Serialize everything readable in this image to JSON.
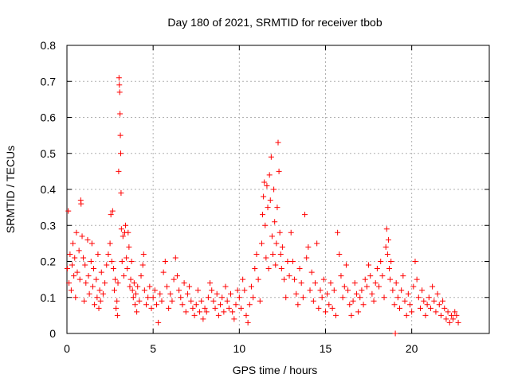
{
  "chart_data": {
    "type": "scatter",
    "title": "Day 180 of 2021, SRMTID for receiver tbob",
    "xlabel": "GPS time / hours",
    "ylabel": "SRMTID / TECUs",
    "xlim": [
      0,
      24.5
    ],
    "ylim": [
      0,
      0.8
    ],
    "xticks": [
      0,
      5,
      10,
      15,
      20
    ],
    "xtick_labels": [
      "0",
      "5",
      "10",
      "15",
      "20"
    ],
    "yticks": [
      0,
      0.1,
      0.2,
      0.3,
      0.4,
      0.5,
      0.6,
      0.7,
      0.8
    ],
    "ytick_labels": [
      "0",
      "0.1",
      "0.2",
      "0.3",
      "0.4",
      "0.5",
      "0.6",
      "0.7",
      "0.8"
    ],
    "grid": true,
    "marker": "+",
    "color": "#ff0000",
    "series": [
      {
        "name": "SRMTID",
        "points": [
          [
            0.02,
            0.18
          ],
          [
            0.08,
            0.34
          ],
          [
            0.12,
            0.14
          ],
          [
            0.18,
            0.22
          ],
          [
            0.25,
            0.12
          ],
          [
            0.3,
            0.19
          ],
          [
            0.35,
            0.25
          ],
          [
            0.4,
            0.16
          ],
          [
            0.45,
            0.21
          ],
          [
            0.5,
            0.1
          ],
          [
            0.55,
            0.28
          ],
          [
            0.6,
            0.17
          ],
          [
            0.7,
            0.23
          ],
          [
            0.75,
            0.15
          ],
          [
            0.8,
            0.37
          ],
          [
            0.82,
            0.36
          ],
          [
            0.88,
            0.27
          ],
          [
            0.95,
            0.21
          ],
          [
            1.0,
            0.09
          ],
          [
            1.05,
            0.19
          ],
          [
            1.1,
            0.14
          ],
          [
            1.2,
            0.26
          ],
          [
            1.25,
            0.16
          ],
          [
            1.3,
            0.11
          ],
          [
            1.4,
            0.2
          ],
          [
            1.45,
            0.25
          ],
          [
            1.5,
            0.13
          ],
          [
            1.55,
            0.18
          ],
          [
            1.6,
            0.08
          ],
          [
            1.7,
            0.15
          ],
          [
            1.75,
            0.1
          ],
          [
            1.8,
            0.22
          ],
          [
            1.85,
            0.07
          ],
          [
            1.9,
            0.12
          ],
          [
            1.95,
            0.09
          ],
          [
            2.0,
            0.17
          ],
          [
            2.1,
            0.11
          ],
          [
            2.2,
            0.14
          ],
          [
            2.3,
            0.19
          ],
          [
            2.4,
            0.22
          ],
          [
            2.5,
            0.25
          ],
          [
            2.55,
            0.33
          ],
          [
            2.6,
            0.2
          ],
          [
            2.65,
            0.34
          ],
          [
            2.7,
            0.18
          ],
          [
            2.75,
            0.12
          ],
          [
            2.8,
            0.15
          ],
          [
            2.85,
            0.07
          ],
          [
            2.9,
            0.09
          ],
          [
            2.93,
            0.05
          ],
          [
            2.96,
            0.14
          ],
          [
            3.0,
            0.45
          ],
          [
            3.02,
            0.71
          ],
          [
            3.04,
            0.69
          ],
          [
            3.06,
            0.67
          ],
          [
            3.08,
            0.61
          ],
          [
            3.1,
            0.55
          ],
          [
            3.12,
            0.5
          ],
          [
            3.14,
            0.39
          ],
          [
            3.16,
            0.29
          ],
          [
            3.2,
            0.2
          ],
          [
            3.25,
            0.27
          ],
          [
            3.3,
            0.16
          ],
          [
            3.35,
            0.28
          ],
          [
            3.4,
            0.3
          ],
          [
            3.45,
            0.21
          ],
          [
            3.5,
            0.18
          ],
          [
            3.55,
            0.28
          ],
          [
            3.6,
            0.24
          ],
          [
            3.65,
            0.13
          ],
          [
            3.7,
            0.15
          ],
          [
            3.75,
            0.2
          ],
          [
            3.8,
            0.12
          ],
          [
            3.85,
            0.1
          ],
          [
            3.9,
            0.14
          ],
          [
            3.95,
            0.08
          ],
          [
            4.0,
            0.11
          ],
          [
            4.05,
            0.06
          ],
          [
            4.1,
            0.13
          ],
          [
            4.2,
            0.09
          ],
          [
            4.3,
            0.16
          ],
          [
            4.4,
            0.19
          ],
          [
            4.45,
            0.22
          ],
          [
            4.5,
            0.12
          ],
          [
            4.6,
            0.08
          ],
          [
            4.7,
            0.1
          ],
          [
            4.8,
            0.13
          ],
          [
            4.9,
            0.07
          ],
          [
            5.0,
            0.1
          ],
          [
            5.1,
            0.12
          ],
          [
            5.2,
            0.08
          ],
          [
            5.3,
            0.03
          ],
          [
            5.4,
            0.11
          ],
          [
            5.5,
            0.09
          ],
          [
            5.6,
            0.17
          ],
          [
            5.7,
            0.2
          ],
          [
            5.8,
            0.13
          ],
          [
            5.9,
            0.07
          ],
          [
            6.0,
            0.11
          ],
          [
            6.1,
            0.09
          ],
          [
            6.2,
            0.15
          ],
          [
            6.3,
            0.21
          ],
          [
            6.4,
            0.16
          ],
          [
            6.5,
            0.12
          ],
          [
            6.6,
            0.1
          ],
          [
            6.7,
            0.08
          ],
          [
            6.8,
            0.14
          ],
          [
            6.9,
            0.06
          ],
          [
            7.0,
            0.11
          ],
          [
            7.1,
            0.13
          ],
          [
            7.2,
            0.09
          ],
          [
            7.3,
            0.07
          ],
          [
            7.4,
            0.05
          ],
          [
            7.5,
            0.08
          ],
          [
            7.6,
            0.12
          ],
          [
            7.7,
            0.06
          ],
          [
            7.8,
            0.09
          ],
          [
            7.9,
            0.04
          ],
          [
            8.0,
            0.07
          ],
          [
            8.1,
            0.06
          ],
          [
            8.2,
            0.1
          ],
          [
            8.3,
            0.14
          ],
          [
            8.4,
            0.12
          ],
          [
            8.5,
            0.09
          ],
          [
            8.6,
            0.07
          ],
          [
            8.7,
            0.11
          ],
          [
            8.8,
            0.05
          ],
          [
            8.9,
            0.08
          ],
          [
            9.0,
            0.1
          ],
          [
            9.1,
            0.06
          ],
          [
            9.2,
            0.13
          ],
          [
            9.3,
            0.09
          ],
          [
            9.4,
            0.07
          ],
          [
            9.5,
            0.11
          ],
          [
            9.6,
            0.06
          ],
          [
            9.7,
            0.04
          ],
          [
            9.8,
            0.08
          ],
          [
            9.9,
            0.12
          ],
          [
            10.0,
            0.1
          ],
          [
            10.1,
            0.07
          ],
          [
            10.2,
            0.15
          ],
          [
            10.3,
            0.12
          ],
          [
            10.4,
            0.05
          ],
          [
            10.5,
            0.03
          ],
          [
            10.6,
            0.08
          ],
          [
            10.7,
            0.13
          ],
          [
            10.8,
            0.1
          ],
          [
            10.9,
            0.18
          ],
          [
            11.0,
            0.22
          ],
          [
            11.1,
            0.15
          ],
          [
            11.2,
            0.09
          ],
          [
            11.3,
            0.25
          ],
          [
            11.35,
            0.33
          ],
          [
            11.4,
            0.38
          ],
          [
            11.45,
            0.42
          ],
          [
            11.5,
            0.3
          ],
          [
            11.55,
            0.21
          ],
          [
            11.6,
            0.41
          ],
          [
            11.65,
            0.35
          ],
          [
            11.7,
            0.18
          ],
          [
            11.75,
            0.44
          ],
          [
            11.8,
            0.37
          ],
          [
            11.85,
            0.49
          ],
          [
            11.9,
            0.27
          ],
          [
            11.95,
            0.22
          ],
          [
            12.0,
            0.4
          ],
          [
            12.05,
            0.31
          ],
          [
            12.1,
            0.19
          ],
          [
            12.15,
            0.25
          ],
          [
            12.2,
            0.35
          ],
          [
            12.25,
            0.53
          ],
          [
            12.3,
            0.45
          ],
          [
            12.35,
            0.28
          ],
          [
            12.4,
            0.22
          ],
          [
            12.45,
            0.18
          ],
          [
            12.5,
            0.24
          ],
          [
            12.6,
            0.15
          ],
          [
            12.7,
            0.1
          ],
          [
            12.8,
            0.2
          ],
          [
            12.9,
            0.16
          ],
          [
            13.0,
            0.28
          ],
          [
            13.1,
            0.2
          ],
          [
            13.2,
            0.15
          ],
          [
            13.3,
            0.11
          ],
          [
            13.4,
            0.08
          ],
          [
            13.5,
            0.18
          ],
          [
            13.6,
            0.14
          ],
          [
            13.7,
            0.1
          ],
          [
            13.8,
            0.33
          ],
          [
            13.9,
            0.21
          ],
          [
            14.0,
            0.24
          ],
          [
            14.1,
            0.12
          ],
          [
            14.2,
            0.17
          ],
          [
            14.3,
            0.09
          ],
          [
            14.4,
            0.14
          ],
          [
            14.5,
            0.25
          ],
          [
            14.6,
            0.07
          ],
          [
            14.7,
            0.12
          ],
          [
            14.8,
            0.1
          ],
          [
            14.9,
            0.15
          ],
          [
            15.0,
            0.06
          ],
          [
            15.1,
            0.11
          ],
          [
            15.2,
            0.08
          ],
          [
            15.3,
            0.14
          ],
          [
            15.4,
            0.07
          ],
          [
            15.5,
            0.12
          ],
          [
            15.6,
            0.05
          ],
          [
            15.7,
            0.28
          ],
          [
            15.8,
            0.22
          ],
          [
            15.9,
            0.16
          ],
          [
            16.0,
            0.1
          ],
          [
            16.1,
            0.13
          ],
          [
            16.2,
            0.19
          ],
          [
            16.3,
            0.12
          ],
          [
            16.4,
            0.08
          ],
          [
            16.5,
            0.05
          ],
          [
            16.6,
            0.09
          ],
          [
            16.7,
            0.14
          ],
          [
            16.8,
            0.11
          ],
          [
            16.9,
            0.06
          ],
          [
            17.0,
            0.1
          ],
          [
            17.1,
            0.12
          ],
          [
            17.2,
            0.08
          ],
          [
            17.3,
            0.15
          ],
          [
            17.4,
            0.13
          ],
          [
            17.5,
            0.19
          ],
          [
            17.6,
            0.16
          ],
          [
            17.7,
            0.11
          ],
          [
            17.8,
            0.09
          ],
          [
            17.9,
            0.14
          ],
          [
            18.0,
            0.18
          ],
          [
            18.1,
            0.13
          ],
          [
            18.2,
            0.2
          ],
          [
            18.3,
            0.16
          ],
          [
            18.4,
            0.1
          ],
          [
            18.5,
            0.24
          ],
          [
            18.55,
            0.29
          ],
          [
            18.6,
            0.22
          ],
          [
            18.65,
            0.26
          ],
          [
            18.7,
            0.18
          ],
          [
            18.75,
            0.15
          ],
          [
            18.8,
            0.2
          ],
          [
            18.9,
            0.12
          ],
          [
            19.0,
            0.08
          ],
          [
            19.05,
            0.0
          ],
          [
            19.1,
            0.14
          ],
          [
            19.2,
            0.1
          ],
          [
            19.3,
            0.07
          ],
          [
            19.4,
            0.12
          ],
          [
            19.5,
            0.16
          ],
          [
            19.6,
            0.09
          ],
          [
            19.7,
            0.05
          ],
          [
            19.8,
            0.11
          ],
          [
            19.9,
            0.08
          ],
          [
            20.0,
            0.06
          ],
          [
            20.1,
            0.13
          ],
          [
            20.2,
            0.2
          ],
          [
            20.3,
            0.15
          ],
          [
            20.4,
            0.1
          ],
          [
            20.5,
            0.07
          ],
          [
            20.6,
            0.12
          ],
          [
            20.7,
            0.09
          ],
          [
            20.8,
            0.05
          ],
          [
            20.9,
            0.08
          ],
          [
            21.0,
            0.1
          ],
          [
            21.1,
            0.07
          ],
          [
            21.2,
            0.13
          ],
          [
            21.3,
            0.09
          ],
          [
            21.4,
            0.06
          ],
          [
            21.5,
            0.11
          ],
          [
            21.6,
            0.08
          ],
          [
            21.7,
            0.05
          ],
          [
            21.8,
            0.09
          ],
          [
            21.9,
            0.07
          ],
          [
            22.0,
            0.04
          ],
          [
            22.1,
            0.06
          ],
          [
            22.2,
            0.03
          ],
          [
            22.3,
            0.05
          ],
          [
            22.4,
            0.04
          ],
          [
            22.5,
            0.06
          ],
          [
            22.6,
            0.05
          ],
          [
            22.7,
            0.03
          ]
        ]
      }
    ]
  }
}
